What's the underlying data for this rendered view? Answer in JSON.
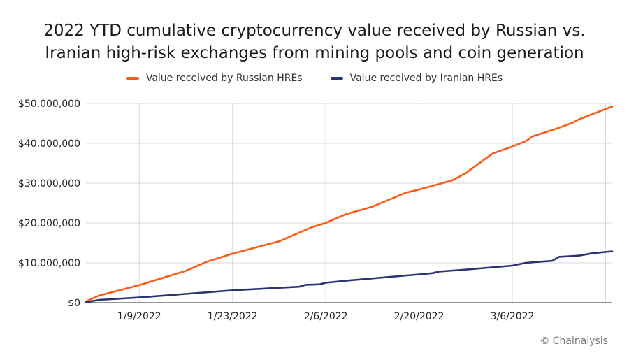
{
  "chart_data": {
    "type": "line",
    "title": "2022 YTD cumulative cryptocurrency value received by Russian vs. Iranian high-risk exchanges from mining pools and coin generation",
    "title_lines": [
      "2022 YTD cumulative cryptocurrency value received by Russian vs.",
      "Iranian high-risk exchanges from mining pools and coin generation"
    ],
    "xlabel": "",
    "ylabel": "",
    "xlim": [
      "2022-01-01",
      "2022-03-21"
    ],
    "ylim": [
      0,
      50000000
    ],
    "x_ticks": [
      {
        "date": "2022-01-09",
        "label": "1/9/2022"
      },
      {
        "date": "2022-01-23",
        "label": "1/23/2022"
      },
      {
        "date": "2022-02-06",
        "label": "2/6/2022"
      },
      {
        "date": "2022-02-20",
        "label": "2/20/2022"
      },
      {
        "date": "2022-03-06",
        "label": "3/6/2022"
      },
      {
        "date": "2022-03-20",
        "label": ""
      }
    ],
    "y_ticks": [
      {
        "value": 0,
        "label": "$0"
      },
      {
        "value": 10000000,
        "label": "$10,000,000"
      },
      {
        "value": 20000000,
        "label": "$20,000,000"
      },
      {
        "value": 30000000,
        "label": "$30,000,000"
      },
      {
        "value": 40000000,
        "label": "$40,000,000"
      },
      {
        "value": 50000000,
        "label": "$50,000,000"
      }
    ],
    "grid": true,
    "legend_position": "top",
    "series": [
      {
        "name": "Value received by Russian HREs",
        "color": "#ff5a14",
        "points": [
          [
            "2022-01-01",
            300000
          ],
          [
            "2022-01-03",
            1800000
          ],
          [
            "2022-01-09",
            4400000
          ],
          [
            "2022-01-16",
            8000000
          ],
          [
            "2022-01-19",
            10200000
          ],
          [
            "2022-01-23",
            12300000
          ],
          [
            "2022-01-30",
            15400000
          ],
          [
            "2022-02-04",
            19000000
          ],
          [
            "2022-02-06",
            20000000
          ],
          [
            "2022-02-09",
            22200000
          ],
          [
            "2022-02-13",
            24100000
          ],
          [
            "2022-02-18",
            27600000
          ],
          [
            "2022-02-20",
            28400000
          ],
          [
            "2022-02-25",
            30700000
          ],
          [
            "2022-02-27",
            32500000
          ],
          [
            "2022-03-03",
            37400000
          ],
          [
            "2022-03-06",
            39200000
          ],
          [
            "2022-03-08",
            40500000
          ],
          [
            "2022-03-09",
            41700000
          ],
          [
            "2022-03-13",
            43900000
          ],
          [
            "2022-03-15",
            45100000
          ],
          [
            "2022-03-16",
            46000000
          ],
          [
            "2022-03-20",
            48600000
          ],
          [
            "2022-03-21",
            49200000
          ]
        ]
      },
      {
        "name": "Value received by Iranian HREs",
        "color": "#2b3470",
        "points": [
          [
            "2022-01-01",
            100000
          ],
          [
            "2022-01-03",
            700000
          ],
          [
            "2022-01-09",
            1300000
          ],
          [
            "2022-01-23",
            3100000
          ],
          [
            "2022-02-02",
            4000000
          ],
          [
            "2022-02-03",
            4500000
          ],
          [
            "2022-02-05",
            4600000
          ],
          [
            "2022-02-06",
            5000000
          ],
          [
            "2022-02-09",
            5500000
          ],
          [
            "2022-02-20",
            7100000
          ],
          [
            "2022-02-22",
            7400000
          ],
          [
            "2022-02-23",
            7800000
          ],
          [
            "2022-02-27",
            8300000
          ],
          [
            "2022-03-06",
            9300000
          ],
          [
            "2022-03-08",
            10000000
          ],
          [
            "2022-03-12",
            10500000
          ],
          [
            "2022-03-13",
            11500000
          ],
          [
            "2022-03-16",
            11800000
          ],
          [
            "2022-03-18",
            12400000
          ],
          [
            "2022-03-21",
            12900000
          ]
        ]
      }
    ]
  },
  "credit": "© Chainalysis"
}
